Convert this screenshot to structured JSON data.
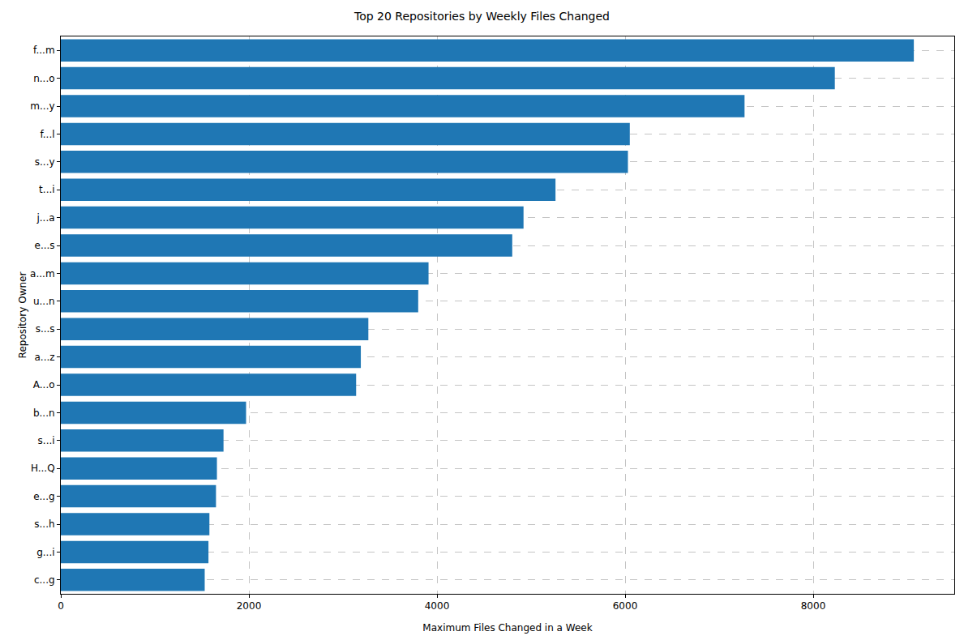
{
  "chart_data": {
    "type": "bar",
    "orientation": "horizontal",
    "title": "Top 20 Repositories by Weekly Files Changed",
    "x_label": "Maximum Files Changed in a Week",
    "y_label": "Repository Owner",
    "categories": [
      "f...m",
      "n...o",
      "m...y",
      "f...l",
      "s...y",
      "t...i",
      "j...a",
      "e...s",
      "a...m",
      "u...n",
      "s...s",
      "a...z",
      "A...o",
      "b...n",
      "s...i",
      "H...Q",
      "e...g",
      "s...h",
      "g...i",
      "c...g"
    ],
    "values": [
      9070,
      8230,
      7270,
      6050,
      6030,
      5260,
      4920,
      4800,
      3910,
      3800,
      3270,
      3190,
      3140,
      1970,
      1730,
      1660,
      1650,
      1580,
      1570,
      1530
    ],
    "color": "#1f77b4",
    "xlim": [
      0,
      9500
    ],
    "xticks": [
      0,
      2000,
      4000,
      6000,
      8000
    ],
    "grid": true
  }
}
